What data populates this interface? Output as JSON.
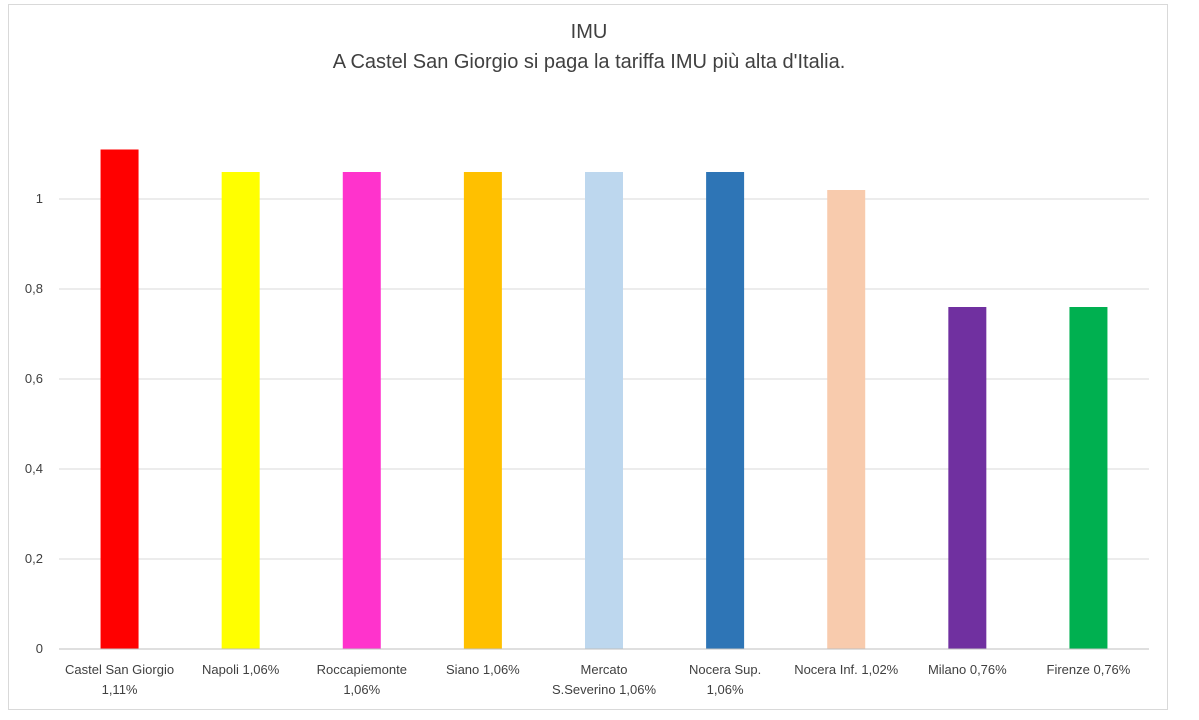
{
  "chart_data": {
    "type": "bar",
    "title": "IMU",
    "subtitle": "A Castel San Giorgio si paga la tariffa IMU più alta d'Italia.",
    "xlabel": "",
    "ylabel": "",
    "ylim": [
      0,
      1.2
    ],
    "yticks": [
      "0",
      "0,2",
      "0,4",
      "0,6",
      "0,8",
      "1"
    ],
    "ytick_values": [
      0,
      0.2,
      0.4,
      0.6,
      0.8,
      1
    ],
    "grid": true,
    "legend": "none",
    "categories": [
      [
        "Castel San Giorgio",
        "1,11%"
      ],
      [
        "Napoli 1,06%"
      ],
      [
        "Roccapiemonte",
        "1,06%"
      ],
      [
        "Siano 1,06%"
      ],
      [
        "Mercato",
        "S.Severino 1,06%"
      ],
      [
        "Nocera Sup.",
        "1,06%"
      ],
      [
        "Nocera Inf. 1,02%"
      ],
      [
        "Milano 0,76%"
      ],
      [
        "Firenze 0,76%"
      ]
    ],
    "values": [
      1.11,
      1.06,
      1.06,
      1.06,
      1.06,
      1.06,
      1.02,
      0.76,
      0.76
    ],
    "colors": [
      "#ff0000",
      "#ffff00",
      "#ff33cc",
      "#ffc000",
      "#bdd7ee",
      "#2e75b6",
      "#f8cbad",
      "#7030a0",
      "#00b050"
    ],
    "gridline_color": "#d9d9d9",
    "axis_color": "#bfbfbf"
  }
}
